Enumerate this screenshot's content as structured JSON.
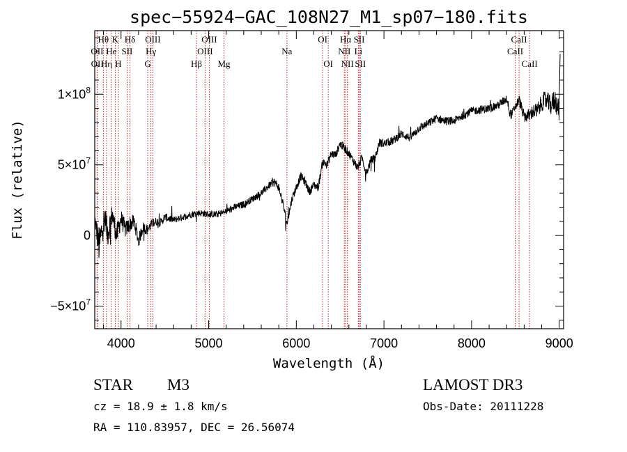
{
  "chart_data": {
    "type": "line",
    "title": "spec−55924−GAC_108N27_M1_sp07−180.fits",
    "xlabel": "Wavelength (Å)",
    "ylabel": "Flux (relative)",
    "xlim": [
      3700,
      9050
    ],
    "ylim": [
      -66000000,
      145000000
    ],
    "x_ticks": [
      {
        "value": 4000,
        "label": "4000"
      },
      {
        "value": 5000,
        "label": "5000"
      },
      {
        "value": 6000,
        "label": "6000"
      },
      {
        "value": 7000,
        "label": "7000"
      },
      {
        "value": 8000,
        "label": "8000"
      },
      {
        "value": 9000,
        "label": "9000"
      }
    ],
    "y_ticks": [
      {
        "value": 100000000,
        "mantissa": "1×10",
        "exp": "8"
      },
      {
        "value": 50000000,
        "mantissa": "5×10",
        "exp": "7"
      },
      {
        "value": 0,
        "mantissa": "0",
        "exp": ""
      },
      {
        "value": -50000000,
        "mantissa": "−5×10",
        "exp": "7"
      }
    ],
    "series": [
      {
        "name": "spectrum",
        "color": "#000000",
        "x": [
          3700,
          3750,
          3800,
          3850,
          3900,
          3950,
          4000,
          4050,
          4100,
          4150,
          4200,
          4250,
          4300,
          4350,
          4400,
          4450,
          4500,
          4600,
          4700,
          4800,
          4900,
          5000,
          5100,
          5200,
          5300,
          5400,
          5500,
          5600,
          5700,
          5750,
          5800,
          5850,
          5893,
          5950,
          6000,
          6050,
          6100,
          6150,
          6200,
          6250,
          6300,
          6350,
          6400,
          6450,
          6500,
          6550,
          6600,
          6650,
          6700,
          6750,
          6800,
          6850,
          6900,
          6950,
          7000,
          7100,
          7200,
          7300,
          7400,
          7500,
          7600,
          7700,
          7800,
          7900,
          8000,
          8100,
          8200,
          8300,
          8400,
          8450,
          8498,
          8542,
          8600,
          8662,
          8700,
          8750,
          8800,
          8850,
          8900,
          8950,
          9000,
          9010
        ],
        "y": [
          12000000,
          -8000000,
          10000000,
          2000000,
          15000000,
          0,
          12000000,
          4000000,
          8000000,
          10000000,
          -4000000,
          6000000,
          4000000,
          8000000,
          10000000,
          9000000,
          13000000,
          11000000,
          13000000,
          15000000,
          16000000,
          15000000,
          15000000,
          17000000,
          20000000,
          22000000,
          26000000,
          30000000,
          36000000,
          38000000,
          34000000,
          22000000,
          8000000,
          26000000,
          34000000,
          42000000,
          38000000,
          31000000,
          36000000,
          34000000,
          52000000,
          50000000,
          58000000,
          57000000,
          65000000,
          62000000,
          58000000,
          53000000,
          48000000,
          55000000,
          44000000,
          53000000,
          55000000,
          66000000,
          65000000,
          67000000,
          72000000,
          69000000,
          76000000,
          79000000,
          83000000,
          81000000,
          81000000,
          85000000,
          88000000,
          89000000,
          90000000,
          92000000,
          97000000,
          85000000,
          91000000,
          96000000,
          84000000,
          85000000,
          88000000,
          88000000,
          94000000,
          96000000,
          92000000,
          96000000,
          89000000,
          128000000
        ],
        "noise": [
          5000000,
          13000000,
          12000000,
          10000000,
          8000000,
          8000000,
          7000000,
          6000000,
          6000000,
          5000000,
          5000000,
          4000000,
          4000000,
          3500000,
          3000000,
          3000000,
          3000000,
          2500000,
          2500000,
          2500000,
          2500000,
          2500000,
          2500000,
          2500000,
          2500000,
          2500000,
          2500000,
          2500000,
          2500000,
          3000000,
          3000000,
          3000000,
          3000000,
          3000000,
          3000000,
          3000000,
          3000000,
          3000000,
          3000000,
          3000000,
          3000000,
          3000000,
          3000000,
          3000000,
          3000000,
          3000000,
          3000000,
          3000000,
          3000000,
          3000000,
          3000000,
          3000000,
          3000000,
          3000000,
          3000000,
          3000000,
          3000000,
          3000000,
          3000000,
          3000000,
          3000000,
          3000000,
          3000000,
          3000000,
          3000000,
          3000000,
          3000000,
          3000000,
          3000000,
          3000000,
          3000000,
          4000000,
          4000000,
          5000000,
          5000000,
          6000000,
          6000000,
          7000000,
          7000000,
          8000000,
          8000000,
          6000000
        ]
      }
    ],
    "spectral_lines": [
      {
        "name": "Hθ",
        "wavelength": 3798,
        "row": 0
      },
      {
        "name": "OII",
        "wavelength": 3727,
        "row": 1
      },
      {
        "name": "OII",
        "wavelength": 3729,
        "row": 2
      },
      {
        "name": "Hη",
        "wavelength": 3835,
        "row": 2
      },
      {
        "name": "He",
        "wavelength": 3889,
        "row": 1
      },
      {
        "name": "K",
        "wavelength": 3934,
        "row": 0
      },
      {
        "name": "H",
        "wavelength": 3969,
        "row": 2
      },
      {
        "name": "SII",
        "wavelength": 4069,
        "row": 1
      },
      {
        "name": "Hδ",
        "wavelength": 4102,
        "row": 0
      },
      {
        "name": "G",
        "wavelength": 4305,
        "row": 2
      },
      {
        "name": "OIII",
        "wavelength": 4363,
        "row": 0
      },
      {
        "name": "Hγ",
        "wavelength": 4341,
        "row": 1
      },
      {
        "name": "Hβ",
        "wavelength": 4861,
        "row": 2
      },
      {
        "name": "OIII",
        "wavelength": 5007,
        "row": 0
      },
      {
        "name": "OIII",
        "wavelength": 4959,
        "row": 1
      },
      {
        "name": "Mg",
        "wavelength": 5175,
        "row": 2
      },
      {
        "name": "Na",
        "wavelength": 5893,
        "row": 1
      },
      {
        "name": "OI",
        "wavelength": 6300,
        "row": 0
      },
      {
        "name": "OI",
        "wavelength": 6364,
        "row": 2
      },
      {
        "name": "Hα",
        "wavelength": 6563,
        "row": 0
      },
      {
        "name": "NII",
        "wavelength": 6548,
        "row": 1
      },
      {
        "name": "NII",
        "wavelength": 6583,
        "row": 2
      },
      {
        "name": "SII",
        "wavelength": 6717,
        "row": 0
      },
      {
        "name": "Li",
        "wavelength": 6708,
        "row": 1
      },
      {
        "name": "SII",
        "wavelength": 6731,
        "row": 2
      },
      {
        "name": "CaII",
        "wavelength": 8542,
        "row": 0
      },
      {
        "name": "CaII",
        "wavelength": 8498,
        "row": 1
      },
      {
        "name": "CaII",
        "wavelength": 8662,
        "row": 2
      }
    ],
    "line_marker_color": "#cc2020"
  },
  "info": {
    "object_class": "STAR",
    "subclass": "M3",
    "survey": "LAMOST DR3",
    "redshift_text": "cz = 18.9 ± 1.8 km/s",
    "obs_date_text": "Obs-Date: 20111228",
    "coords_text": "RA = 110.83957, DEC =  26.56074"
  }
}
